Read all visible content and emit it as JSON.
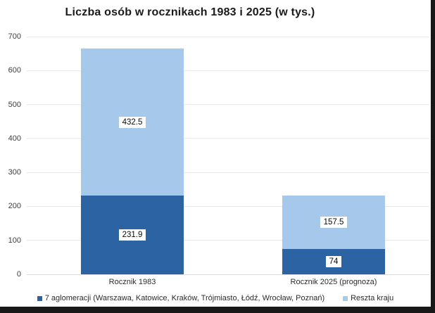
{
  "chart_data": {
    "type": "bar",
    "stacked": true,
    "title": "Liczba osób w rocznikach 1983 i 2025 (w tys.)",
    "xlabel": "",
    "ylabel": "",
    "categories": [
      "Rocznik 1983",
      "Rocznik 2025 (prognoza)"
    ],
    "series": [
      {
        "name": "7 aglomeracji (Warszawa, Katowice, Kraków, Trójmiasto, Łódź, Wrocław, Poznań)",
        "color": "#2b63a3",
        "values": [
          231.9,
          74
        ]
      },
      {
        "name": "Reszta kraju",
        "color": "#a6c9eb",
        "values": [
          432.5,
          157.5
        ]
      }
    ],
    "value_labels": [
      [
        "231.9",
        "74"
      ],
      [
        "432.5",
        "157.5"
      ]
    ],
    "ylim": [
      0,
      700
    ],
    "ytick_step": 100,
    "yticks": [
      "0",
      "100",
      "200",
      "300",
      "400",
      "500",
      "600",
      "700"
    ],
    "grid": true,
    "legend_position": "bottom"
  },
  "colors": {
    "grid": "#e9e9e9",
    "screen_edge": "#181818",
    "label_box_bg": "#ffffff"
  }
}
